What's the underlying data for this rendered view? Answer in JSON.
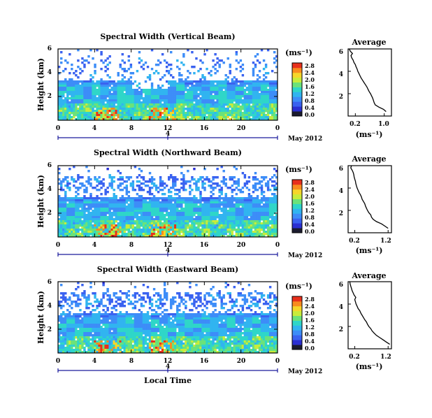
{
  "colors": {
    "colormap": [
      "#1b1b2e",
      "#2b2fd2",
      "#3a62f0",
      "#3d8df8",
      "#31b4f0",
      "#2fd6c8",
      "#6be27a",
      "#c8ec3b",
      "#f6d62a",
      "#f98c1e",
      "#e8301c"
    ],
    "axis": "#000000",
    "date_axis": "#1a1a9c"
  },
  "xlabel": "Local Time",
  "chart_data": [
    {
      "type": "heatmap",
      "title": "Spectral Width (Vertical Beam)",
      "ylabel": "Height (km)",
      "xlim": [
        0,
        24
      ],
      "ylim": [
        0,
        6
      ],
      "x_ticks": [
        "0",
        "4",
        "8",
        "12",
        "16",
        "20",
        "0"
      ],
      "y_ticks": [
        "2",
        "4",
        "6"
      ],
      "date_axis": {
        "tick": "4",
        "label": "May 2012"
      },
      "colorbar": {
        "unit": "(ms⁻¹)",
        "range": [
          0,
          2.8
        ],
        "ticks": [
          "0.0",
          "0.4",
          "0.8",
          "1.2",
          "1.6",
          "2.0",
          "2.4",
          "2.8"
        ]
      },
      "average": {
        "title": "Average",
        "xlabel": "(ms⁻¹)",
        "x_ticks": [
          "0.2",
          "1.0"
        ],
        "y_ticks": [
          "2",
          "4",
          "6"
        ],
        "xlim": [
          0.0,
          1.2
        ],
        "ylim": [
          0,
          6
        ],
        "height": [
          0.4,
          0.6,
          0.8,
          1.0,
          1.2,
          1.4,
          1.6,
          1.8,
          2.0,
          2.2,
          2.4,
          2.6,
          2.8,
          3.0,
          3.2,
          3.4,
          3.6,
          3.8,
          4.0,
          4.2,
          4.4,
          4.6,
          4.8,
          5.0,
          5.2,
          5.4,
          5.6,
          5.8,
          6.0
        ],
        "width": [
          1.05,
          0.98,
          0.85,
          0.75,
          0.72,
          0.7,
          0.68,
          0.65,
          0.62,
          0.58,
          0.55,
          0.52,
          0.48,
          0.44,
          0.4,
          0.36,
          0.33,
          0.3,
          0.27,
          0.25,
          0.22,
          0.2,
          0.16,
          0.14,
          0.1,
          0.08,
          0.12,
          0.06,
          0.03
        ]
      }
    },
    {
      "type": "heatmap",
      "title": "Spectral Width (Northward Beam)",
      "ylabel": "Height (km)",
      "xlim": [
        0,
        24
      ],
      "ylim": [
        0,
        6
      ],
      "x_ticks": [
        "0",
        "4",
        "8",
        "12",
        "16",
        "20",
        "0"
      ],
      "y_ticks": [
        "2",
        "4",
        "6"
      ],
      "date_axis": {
        "tick": "4",
        "label": "May 2012"
      },
      "colorbar": {
        "unit": "(ms⁻¹)",
        "range": [
          0,
          2.8
        ],
        "ticks": [
          "0.0",
          "0.4",
          "0.8",
          "1.2",
          "1.6",
          "2.0",
          "2.4",
          "2.8"
        ]
      },
      "average": {
        "title": "Average",
        "xlabel": "(ms⁻¹)",
        "x_ticks": [
          "0.2",
          "1.2"
        ],
        "y_ticks": [
          "2",
          "4",
          "6"
        ],
        "xlim": [
          0.0,
          1.3
        ],
        "ylim": [
          0,
          6
        ],
        "height": [
          0.4,
          0.6,
          0.8,
          1.0,
          1.2,
          1.4,
          1.6,
          1.8,
          2.0,
          2.2,
          2.4,
          2.6,
          2.8,
          3.0,
          3.2,
          3.4,
          3.6,
          3.8,
          4.0,
          4.2,
          4.4,
          4.6,
          4.8,
          5.0,
          5.2,
          5.4,
          5.6,
          5.8,
          6.0
        ],
        "width": [
          1.2,
          1.1,
          1.0,
          0.85,
          0.75,
          0.7,
          0.68,
          0.62,
          0.58,
          0.55,
          0.52,
          0.5,
          0.46,
          0.42,
          0.4,
          0.37,
          0.33,
          0.3,
          0.27,
          0.25,
          0.23,
          0.22,
          0.2,
          0.18,
          0.17,
          0.15,
          0.12,
          0.08,
          0.1
        ]
      }
    },
    {
      "type": "heatmap",
      "title": "Spectral Width (Eastward Beam)",
      "ylabel": "Height (km)",
      "xlim": [
        0,
        24
      ],
      "ylim": [
        0,
        6
      ],
      "x_ticks": [
        "0",
        "4",
        "8",
        "12",
        "16",
        "20",
        "0"
      ],
      "y_ticks": [
        "2",
        "4",
        "6"
      ],
      "date_axis": {
        "tick": "4",
        "label": "May 2012"
      },
      "colorbar": {
        "unit": "(ms⁻¹)",
        "range": [
          0,
          2.8
        ],
        "ticks": [
          "0.0",
          "0.4",
          "0.8",
          "1.2",
          "1.6",
          "2.0",
          "2.4",
          "2.8"
        ]
      },
      "average": {
        "title": "Average",
        "xlabel": "(ms⁻¹)",
        "x_ticks": [
          "0.2",
          "1.2"
        ],
        "y_ticks": [
          "2",
          "4",
          "6"
        ],
        "xlim": [
          0.0,
          1.3
        ],
        "ylim": [
          0,
          6
        ],
        "height": [
          0.4,
          0.6,
          0.8,
          1.0,
          1.2,
          1.4,
          1.6,
          1.8,
          2.0,
          2.2,
          2.4,
          2.6,
          2.8,
          3.0,
          3.2,
          3.4,
          3.6,
          3.8,
          4.0,
          4.2,
          4.4,
          4.6,
          4.8,
          5.0,
          5.2,
          5.4,
          5.6,
          5.8,
          6.0
        ],
        "width": [
          1.25,
          1.15,
          1.05,
          0.95,
          0.85,
          0.78,
          0.72,
          0.68,
          0.62,
          0.58,
          0.55,
          0.5,
          0.46,
          0.42,
          0.38,
          0.35,
          0.3,
          0.27,
          0.24,
          0.22,
          0.2,
          0.23,
          0.18,
          0.15,
          0.12,
          0.1,
          0.08,
          0.06,
          0.05
        ]
      }
    }
  ]
}
